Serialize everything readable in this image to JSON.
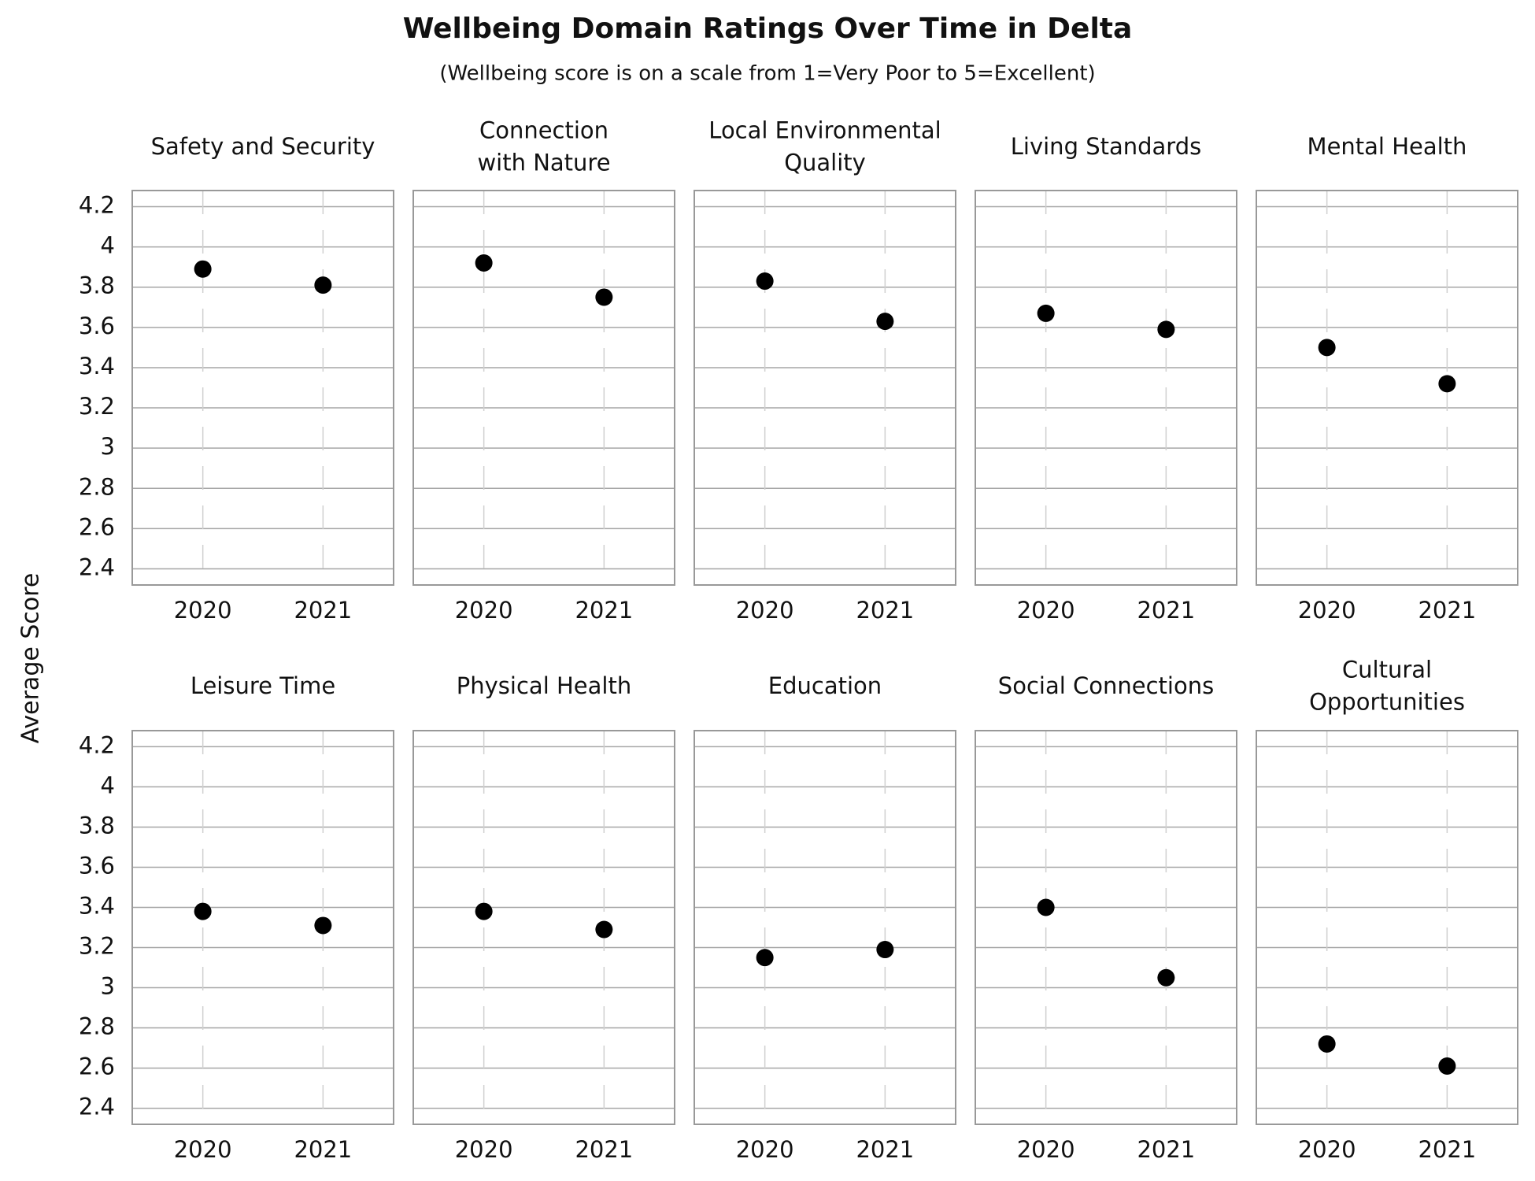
{
  "title": "Wellbeing Domain Ratings Over Time in Delta",
  "subtitle": "(Wellbeing score is on a scale from 1=Very Poor to 5=Excellent)",
  "y_label": "Average Score",
  "chart_data": [
    {
      "type": "scatter",
      "title": "Safety and Security",
      "categories": [
        "2020",
        "2021"
      ],
      "values": [
        3.89,
        3.81
      ],
      "color": "#000000",
      "ylim": [
        2.32,
        4.28
      ],
      "yticks": [
        2.4,
        2.6,
        2.8,
        3.0,
        3.2,
        3.4,
        3.6,
        3.8,
        4.0,
        4.2
      ],
      "grid": true
    },
    {
      "type": "scatter",
      "title": "Connection\nwith Nature",
      "categories": [
        "2020",
        "2021"
      ],
      "values": [
        3.92,
        3.75
      ],
      "color": "#000000",
      "ylim": [
        2.32,
        4.28
      ],
      "yticks": [
        2.4,
        2.6,
        2.8,
        3.0,
        3.2,
        3.4,
        3.6,
        3.8,
        4.0,
        4.2
      ],
      "grid": true
    },
    {
      "type": "scatter",
      "title": "Local Environmental\nQuality",
      "categories": [
        "2020",
        "2021"
      ],
      "values": [
        3.83,
        3.63
      ],
      "color": "#000000",
      "ylim": [
        2.32,
        4.28
      ],
      "yticks": [
        2.4,
        2.6,
        2.8,
        3.0,
        3.2,
        3.4,
        3.6,
        3.8,
        4.0,
        4.2
      ],
      "grid": true
    },
    {
      "type": "scatter",
      "title": "Living Standards",
      "categories": [
        "2020",
        "2021"
      ],
      "values": [
        3.67,
        3.59
      ],
      "color": "#000000",
      "ylim": [
        2.32,
        4.28
      ],
      "yticks": [
        2.4,
        2.6,
        2.8,
        3.0,
        3.2,
        3.4,
        3.6,
        3.8,
        4.0,
        4.2
      ],
      "grid": true
    },
    {
      "type": "scatter",
      "title": "Mental Health",
      "categories": [
        "2020",
        "2021"
      ],
      "values": [
        3.5,
        3.32
      ],
      "color": "#000000",
      "ylim": [
        2.32,
        4.28
      ],
      "yticks": [
        2.4,
        2.6,
        2.8,
        3.0,
        3.2,
        3.4,
        3.6,
        3.8,
        4.0,
        4.2
      ],
      "grid": true
    },
    {
      "type": "scatter",
      "title": "Leisure Time",
      "categories": [
        "2020",
        "2021"
      ],
      "values": [
        3.38,
        3.31
      ],
      "color": "#000000",
      "ylim": [
        2.32,
        4.28
      ],
      "yticks": [
        2.4,
        2.6,
        2.8,
        3.0,
        3.2,
        3.4,
        3.6,
        3.8,
        4.0,
        4.2
      ],
      "grid": true
    },
    {
      "type": "scatter",
      "title": "Physical Health",
      "categories": [
        "2020",
        "2021"
      ],
      "values": [
        3.38,
        3.29
      ],
      "color": "#000000",
      "ylim": [
        2.32,
        4.28
      ],
      "yticks": [
        2.4,
        2.6,
        2.8,
        3.0,
        3.2,
        3.4,
        3.6,
        3.8,
        4.0,
        4.2
      ],
      "grid": true
    },
    {
      "type": "scatter",
      "title": "Education",
      "categories": [
        "2020",
        "2021"
      ],
      "values": [
        3.15,
        3.19
      ],
      "color": "#000000",
      "ylim": [
        2.32,
        4.28
      ],
      "yticks": [
        2.4,
        2.6,
        2.8,
        3.0,
        3.2,
        3.4,
        3.6,
        3.8,
        4.0,
        4.2
      ],
      "grid": true
    },
    {
      "type": "scatter",
      "title": "Social Connections",
      "categories": [
        "2020",
        "2021"
      ],
      "values": [
        3.4,
        3.05
      ],
      "color": "#000000",
      "ylim": [
        2.32,
        4.28
      ],
      "yticks": [
        2.4,
        2.6,
        2.8,
        3.0,
        3.2,
        3.4,
        3.6,
        3.8,
        4.0,
        4.2
      ],
      "grid": true
    },
    {
      "type": "scatter",
      "title": "Cultural\nOpportunities",
      "categories": [
        "2020",
        "2021"
      ],
      "values": [
        2.72,
        2.61
      ],
      "color": "#000000",
      "ylim": [
        2.32,
        4.28
      ],
      "yticks": [
        2.4,
        2.6,
        2.8,
        3.0,
        3.2,
        3.4,
        3.6,
        3.8,
        4.0,
        4.2
      ],
      "grid": true
    }
  ]
}
